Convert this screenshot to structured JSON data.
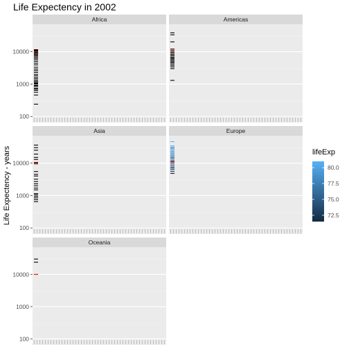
{
  "chart_data": {
    "type": "faceted-strip",
    "title": "Life Expectency in 2002",
    "ylabel": "Life Expectency - years",
    "y_scale": "log10",
    "ylim": [
      65,
      70000
    ],
    "yticks": [
      100,
      1000,
      10000
    ],
    "ytick_labels": [
      "100",
      "1000",
      "10000"
    ],
    "legend": {
      "title": "lifeExp",
      "position": "right",
      "range": [
        71.5,
        81
      ],
      "ticks": [
        72.5,
        75.0,
        77.5,
        80.0
      ],
      "tick_labels": [
        "72.5",
        "75.0",
        "77.5",
        "80.0"
      ],
      "colors": [
        "#132b43",
        "#56b1f7"
      ]
    },
    "highlight_color": "#e41a1c",
    "facets": [
      {
        "name": "Africa",
        "values": [
          11500,
          11000,
          10500,
          10000,
          9600,
          9200,
          8500,
          8000,
          7400,
          6800,
          6200,
          5600,
          5000,
          4400,
          3900,
          3300,
          2900,
          2600,
          2300,
          2000,
          1800,
          1600,
          1450,
          1300,
          1200,
          1100,
          1050,
          980,
          900,
          850,
          750,
          700,
          640,
          560,
          460,
          240
        ],
        "highlight": [
          10000
        ]
      },
      {
        "name": "Americas",
        "values": [
          38000,
          33000,
          20000,
          12000,
          10800,
          9800,
          9000,
          8200,
          7500,
          6800,
          6300,
          5900,
          5400,
          5000,
          4600,
          4200,
          3800,
          3400,
          3000,
          1300
        ],
        "highlight": [
          11000
        ]
      },
      {
        "name": "Asia",
        "values": [
          36000,
          30000,
          25000,
          19000,
          15000,
          13000,
          10500,
          9500,
          5500,
          4500,
          4000,
          3200,
          2700,
          2300,
          2000,
          1700,
          1500,
          1150,
          1050,
          950,
          850,
          750,
          650
        ],
        "highlight": [
          9800
        ]
      },
      {
        "name": "Europe",
        "values": [
          46000,
          34000,
          31000,
          29000,
          27000,
          24000,
          22000,
          20000,
          18000,
          16500,
          15000,
          14000,
          12500,
          11500,
          10500,
          9500,
          8500,
          7600,
          7000,
          6300,
          5500,
          4800
        ],
        "highlight": [
          11000
        ]
      },
      {
        "name": "Oceania",
        "values": [
          30000,
          24000
        ],
        "highlight": [
          10000
        ]
      }
    ]
  }
}
